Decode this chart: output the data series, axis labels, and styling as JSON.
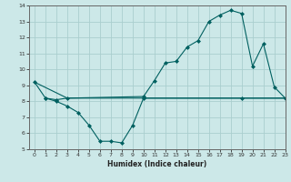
{
  "xlabel": "Humidex (Indice chaleur)",
  "bg_color": "#cce8e8",
  "grid_color": "#aacece",
  "line_color": "#006060",
  "line1_x": [
    0,
    1,
    2,
    3,
    10,
    11,
    12,
    13,
    14,
    15,
    16,
    17,
    18,
    19,
    20,
    21,
    22,
    23
  ],
  "line1_y": [
    9.2,
    8.2,
    8.1,
    8.2,
    8.3,
    9.3,
    10.4,
    10.5,
    11.4,
    11.8,
    13.0,
    13.4,
    13.7,
    13.5,
    10.2,
    11.6,
    8.9,
    8.2
  ],
  "line2_x": [
    0,
    3,
    23
  ],
  "line2_y": [
    9.2,
    8.2,
    8.2
  ],
  "line3_x": [
    1,
    2,
    3,
    4,
    5,
    6,
    7,
    8,
    9,
    10,
    19,
    23
  ],
  "line3_y": [
    8.2,
    8.0,
    7.7,
    7.3,
    6.5,
    5.5,
    5.5,
    5.4,
    6.5,
    8.2,
    8.2,
    8.2
  ],
  "ylim": [
    5,
    14
  ],
  "xlim": [
    -0.5,
    23
  ],
  "yticks": [
    5,
    6,
    7,
    8,
    9,
    10,
    11,
    12,
    13,
    14
  ],
  "xticks": [
    0,
    1,
    2,
    3,
    4,
    5,
    6,
    7,
    8,
    9,
    10,
    11,
    12,
    13,
    14,
    15,
    16,
    17,
    18,
    19,
    20,
    21,
    22,
    23
  ]
}
